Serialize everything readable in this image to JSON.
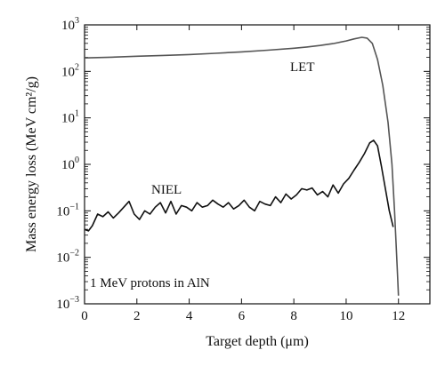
{
  "chart_data": {
    "type": "line",
    "title": "",
    "xlabel": "Target depth (μm)",
    "ylabel": "Mass energy loss (MeV cm²/g)",
    "xlim": [
      0,
      13.2
    ],
    "ylim": [
      0.001,
      1000
    ],
    "yscale": "log",
    "grid": false,
    "legend": "none",
    "x_ticks": [
      0,
      2,
      4,
      6,
      8,
      10,
      12
    ],
    "y_ticks": [
      {
        "value": 0.001,
        "base": "10",
        "exp": "−3"
      },
      {
        "value": 0.01,
        "base": "10",
        "exp": "−2"
      },
      {
        "value": 0.1,
        "base": "10",
        "exp": "−1"
      },
      {
        "value": 1,
        "base": "10",
        "exp": "0"
      },
      {
        "value": 10,
        "base": "10",
        "exp": "1"
      },
      {
        "value": 100,
        "base": "10",
        "exp": "2"
      },
      {
        "value": 1000,
        "base": "10",
        "exp": "3"
      }
    ],
    "annotations": {
      "let": "LET",
      "niel": "NIEL",
      "note": "1 MeV protons in AlN"
    },
    "series": [
      {
        "name": "LET",
        "color": "#555555",
        "x": [
          0,
          0.5,
          1,
          2,
          3,
          4,
          5,
          6,
          7,
          8,
          8.5,
          9,
          9.5,
          10,
          10.3,
          10.6,
          10.8,
          11.0,
          11.2,
          11.4,
          11.6,
          11.75,
          11.85,
          11.95,
          12.0
        ],
        "y": [
          195,
          198,
          202,
          212,
          220,
          230,
          245,
          262,
          285,
          315,
          335,
          360,
          395,
          450,
          500,
          540,
          520,
          400,
          180,
          50,
          8,
          1.0,
          0.1,
          0.006,
          0.0015
        ]
      },
      {
        "name": "NIEL",
        "color": "#111111",
        "x": [
          0,
          0.15,
          0.3,
          0.5,
          0.7,
          0.9,
          1.1,
          1.3,
          1.5,
          1.7,
          1.9,
          2.1,
          2.3,
          2.5,
          2.7,
          2.9,
          3.1,
          3.3,
          3.5,
          3.7,
          3.9,
          4.1,
          4.3,
          4.5,
          4.7,
          4.9,
          5.1,
          5.3,
          5.5,
          5.7,
          5.9,
          6.1,
          6.3,
          6.5,
          6.7,
          6.9,
          7.1,
          7.3,
          7.5,
          7.7,
          7.9,
          8.1,
          8.3,
          8.5,
          8.7,
          8.9,
          9.1,
          9.3,
          9.5,
          9.7,
          9.9,
          10.1,
          10.3,
          10.5,
          10.7,
          10.9,
          11.05,
          11.2,
          11.35,
          11.5,
          11.65,
          11.8
        ],
        "y": [
          0.04,
          0.037,
          0.048,
          0.085,
          0.075,
          0.095,
          0.07,
          0.09,
          0.12,
          0.16,
          0.085,
          0.065,
          0.1,
          0.085,
          0.12,
          0.15,
          0.09,
          0.16,
          0.085,
          0.13,
          0.12,
          0.1,
          0.15,
          0.12,
          0.13,
          0.17,
          0.14,
          0.12,
          0.15,
          0.11,
          0.13,
          0.17,
          0.12,
          0.1,
          0.16,
          0.14,
          0.13,
          0.2,
          0.15,
          0.23,
          0.18,
          0.22,
          0.3,
          0.28,
          0.31,
          0.22,
          0.26,
          0.2,
          0.36,
          0.24,
          0.38,
          0.5,
          0.75,
          1.1,
          1.7,
          2.9,
          3.3,
          2.5,
          0.9,
          0.3,
          0.1,
          0.045
        ]
      }
    ]
  }
}
